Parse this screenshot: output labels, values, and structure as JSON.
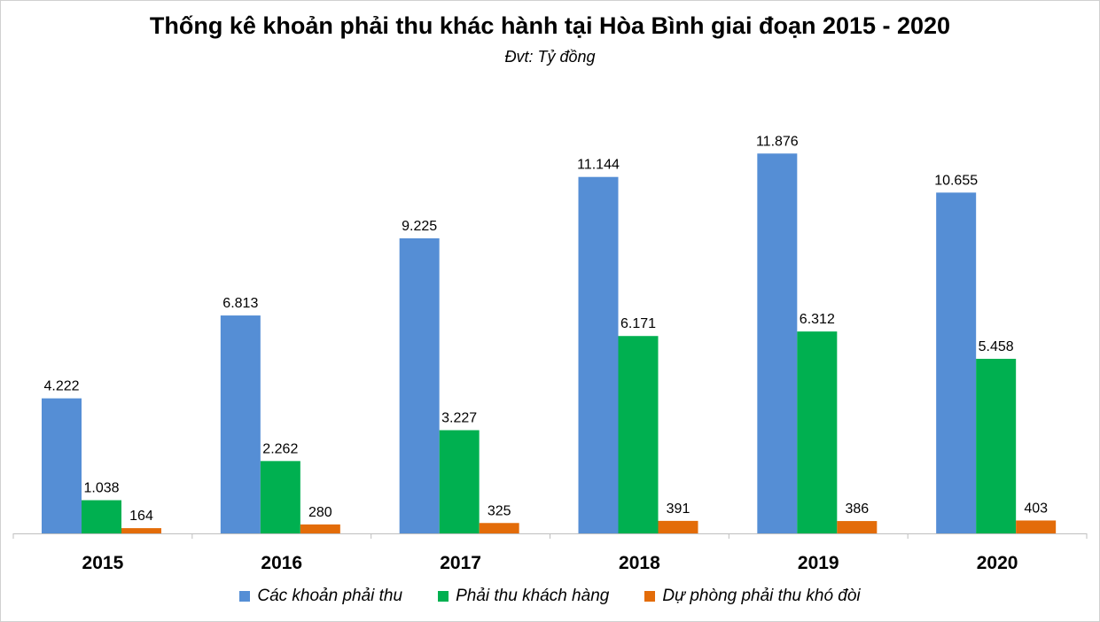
{
  "chart_data": {
    "type": "bar",
    "title": "Thống kê khoản phải thu khác hành tại Hòa Bình giai đoạn 2015 - 2020",
    "subtitle": "Đvt: Tỷ đồng",
    "categories": [
      "2015",
      "2016",
      "2017",
      "2018",
      "2019",
      "2020"
    ],
    "series": [
      {
        "name": "Các khoản phải thu",
        "color": "#558ED5",
        "values": [
          4222,
          6813,
          9225,
          11144,
          11876,
          10655
        ],
        "labels": [
          "4.222",
          "6.813",
          "9.225",
          "11.144",
          "11.876",
          "10.655"
        ]
      },
      {
        "name": "Phải thu khách hàng",
        "color": "#00B050",
        "values": [
          1038,
          2262,
          3227,
          6171,
          6312,
          5458
        ],
        "labels": [
          "1.038",
          "2.262",
          "3.227",
          "6.171",
          "6.312",
          "5.458"
        ]
      },
      {
        "name": "Dự phòng phải thu khó đòi",
        "color": "#E36C09",
        "values": [
          164,
          280,
          325,
          391,
          386,
          403
        ],
        "labels": [
          "164",
          "280",
          "325",
          "391",
          "386",
          "403"
        ]
      }
    ],
    "ylim": [
      0,
      12000
    ],
    "grid": false,
    "legend": "bottom"
  }
}
